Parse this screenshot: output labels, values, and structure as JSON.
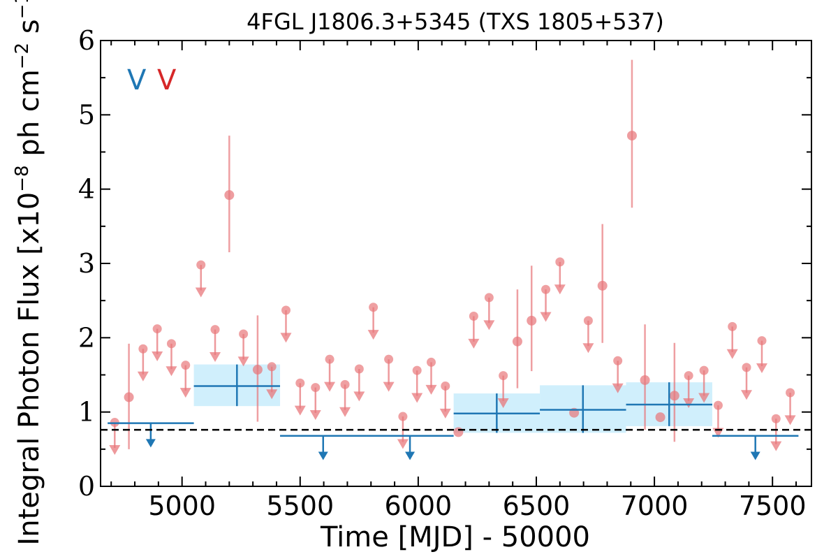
{
  "chart_data": {
    "type": "scatter",
    "title": "4FGL J1806.3+5345 (TXS 1805+537)",
    "xlabel": "Time [MJD] - 50000",
    "ylabel_prefix": "Integral Photon Flux [x10",
    "ylabel_exp1": "−8",
    "ylabel_mid": " ph cm",
    "ylabel_exp2": "−2",
    "ylabel_mid2": " s",
    "ylabel_exp3": "−1",
    "ylabel_suffix": "]",
    "xlim": [
      4655,
      7665
    ],
    "ylim": [
      0,
      6
    ],
    "xticks": [
      5000,
      5500,
      6000,
      6500,
      7000,
      7500
    ],
    "yticks": [
      0,
      1,
      2,
      3,
      4,
      5,
      6
    ],
    "legend_markers": [
      {
        "label": "V",
        "color": "#1f77b4"
      },
      {
        "label": "V",
        "color": "#d62728"
      }
    ],
    "reference_line": {
      "y": 0.76,
      "style": "dashed",
      "color": "#000000"
    },
    "colors": {
      "red_points": "#e8777b",
      "blue_series": "#1f77b4",
      "blue_band": "#cdeefc"
    },
    "series": [
      {
        "kind": "monthly_detections",
        "color": "#e8777b",
        "points": [
          {
            "x": 4775,
            "y": 1.2,
            "ylo": 0.5,
            "yhi": 1.92
          },
          {
            "x": 5200,
            "y": 3.92,
            "ylo": 3.15,
            "yhi": 4.72
          },
          {
            "x": 5320,
            "y": 1.57,
            "ylo": 0.87,
            "yhi": 2.3
          },
          {
            "x": 6170,
            "y": 0.73,
            "ylo": 0.73,
            "yhi": 0.73
          },
          {
            "x": 6420,
            "y": 1.95,
            "ylo": 1.32,
            "yhi": 2.65
          },
          {
            "x": 6480,
            "y": 2.23,
            "ylo": 1.55,
            "yhi": 2.97
          },
          {
            "x": 6660,
            "y": 0.99,
            "ylo": 0.99,
            "yhi": 0.99
          },
          {
            "x": 6780,
            "y": 2.7,
            "ylo": 1.93,
            "yhi": 3.53
          },
          {
            "x": 6905,
            "y": 4.72,
            "ylo": 3.75,
            "yhi": 5.74
          },
          {
            "x": 6960,
            "y": 1.43,
            "ylo": 0.76,
            "yhi": 2.18
          },
          {
            "x": 7025,
            "y": 0.93,
            "ylo": 0.93,
            "yhi": 0.93
          },
          {
            "x": 7085,
            "y": 1.22,
            "ylo": 0.6,
            "yhi": 1.93
          }
        ]
      },
      {
        "kind": "monthly_upper_limits",
        "color": "#e8777b",
        "points": [
          {
            "x": 4715,
            "y": 0.86
          },
          {
            "x": 4835,
            "y": 1.85
          },
          {
            "x": 4895,
            "y": 2.12
          },
          {
            "x": 4955,
            "y": 1.92
          },
          {
            "x": 5015,
            "y": 1.63
          },
          {
            "x": 5080,
            "y": 2.98
          },
          {
            "x": 5140,
            "y": 2.11
          },
          {
            "x": 5260,
            "y": 2.05
          },
          {
            "x": 5380,
            "y": 1.61
          },
          {
            "x": 5440,
            "y": 2.37
          },
          {
            "x": 5500,
            "y": 1.39
          },
          {
            "x": 5565,
            "y": 1.33
          },
          {
            "x": 5625,
            "y": 1.71
          },
          {
            "x": 5690,
            "y": 1.37
          },
          {
            "x": 5750,
            "y": 1.58
          },
          {
            "x": 5810,
            "y": 2.41
          },
          {
            "x": 5875,
            "y": 1.71
          },
          {
            "x": 5935,
            "y": 0.94
          },
          {
            "x": 5995,
            "y": 1.56
          },
          {
            "x": 6055,
            "y": 1.67
          },
          {
            "x": 6115,
            "y": 1.35
          },
          {
            "x": 6235,
            "y": 2.29
          },
          {
            "x": 6300,
            "y": 2.54
          },
          {
            "x": 6360,
            "y": 1.49
          },
          {
            "x": 6540,
            "y": 2.65
          },
          {
            "x": 6600,
            "y": 3.02
          },
          {
            "x": 6720,
            "y": 2.23
          },
          {
            "x": 6845,
            "y": 1.69
          },
          {
            "x": 7145,
            "y": 1.49
          },
          {
            "x": 7210,
            "y": 1.56
          },
          {
            "x": 7270,
            "y": 1.09
          },
          {
            "x": 7330,
            "y": 2.15
          },
          {
            "x": 7390,
            "y": 1.6
          },
          {
            "x": 7455,
            "y": 1.96
          },
          {
            "x": 7515,
            "y": 0.91
          },
          {
            "x": 7575,
            "y": 1.26
          }
        ]
      },
      {
        "kind": "yearly_detections",
        "color": "#1f77b4",
        "bins": [
          {
            "x0": 5050,
            "x1": 5415,
            "y": 1.35,
            "ylo": 1.08,
            "yhi": 1.64
          },
          {
            "x0": 6150,
            "x1": 6515,
            "y": 0.98,
            "ylo": 0.72,
            "yhi": 1.25
          },
          {
            "x0": 6515,
            "x1": 6880,
            "y": 1.03,
            "ylo": 0.72,
            "yhi": 1.36
          },
          {
            "x0": 6880,
            "x1": 7245,
            "y": 1.1,
            "ylo": 0.81,
            "yhi": 1.4
          }
        ]
      },
      {
        "kind": "yearly_upper_limits",
        "color": "#1f77b4",
        "bins": [
          {
            "x0": 4685,
            "x1": 5050,
            "y": 0.85
          },
          {
            "x0": 5415,
            "x1": 5780,
            "y": 0.68
          },
          {
            "x0": 5780,
            "x1": 6150,
            "y": 0.68
          },
          {
            "x0": 7245,
            "x1": 7610,
            "y": 0.68
          }
        ]
      }
    ]
  }
}
